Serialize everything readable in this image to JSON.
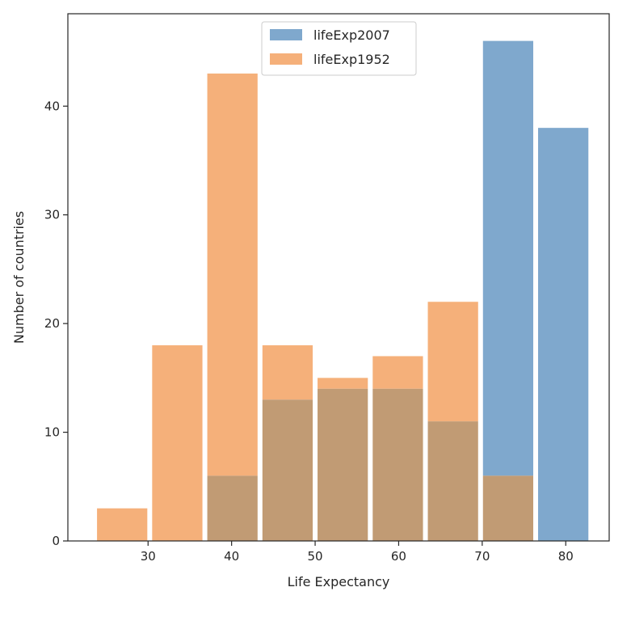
{
  "chart_data": {
    "type": "bar",
    "title": "",
    "xlabel": "Life Expectancy",
    "ylabel": "Number of countries",
    "xlim": [
      20.4,
      85.2
    ],
    "ylim": [
      0,
      48.5
    ],
    "xticks": [
      30,
      40,
      50,
      60,
      70,
      80
    ],
    "yticks": [
      0,
      10,
      20,
      30,
      40
    ],
    "bin_edges": [
      23.6,
      30.2,
      36.8,
      43.4,
      50.0,
      56.6,
      63.2,
      69.8,
      76.4,
      83.0
    ],
    "series": [
      {
        "name": "lifeExp2007",
        "color": "#7fa8cd",
        "values": [
          0,
          0,
          6,
          13,
          14,
          14,
          11,
          46,
          38
        ]
      },
      {
        "name": "lifeExp1952",
        "color": "#f5b07a",
        "values": [
          3,
          18,
          43,
          18,
          15,
          17,
          22,
          6,
          0
        ]
      }
    ],
    "overlap_color": "#c19b74",
    "legend_position": "upper center",
    "grid": false
  }
}
